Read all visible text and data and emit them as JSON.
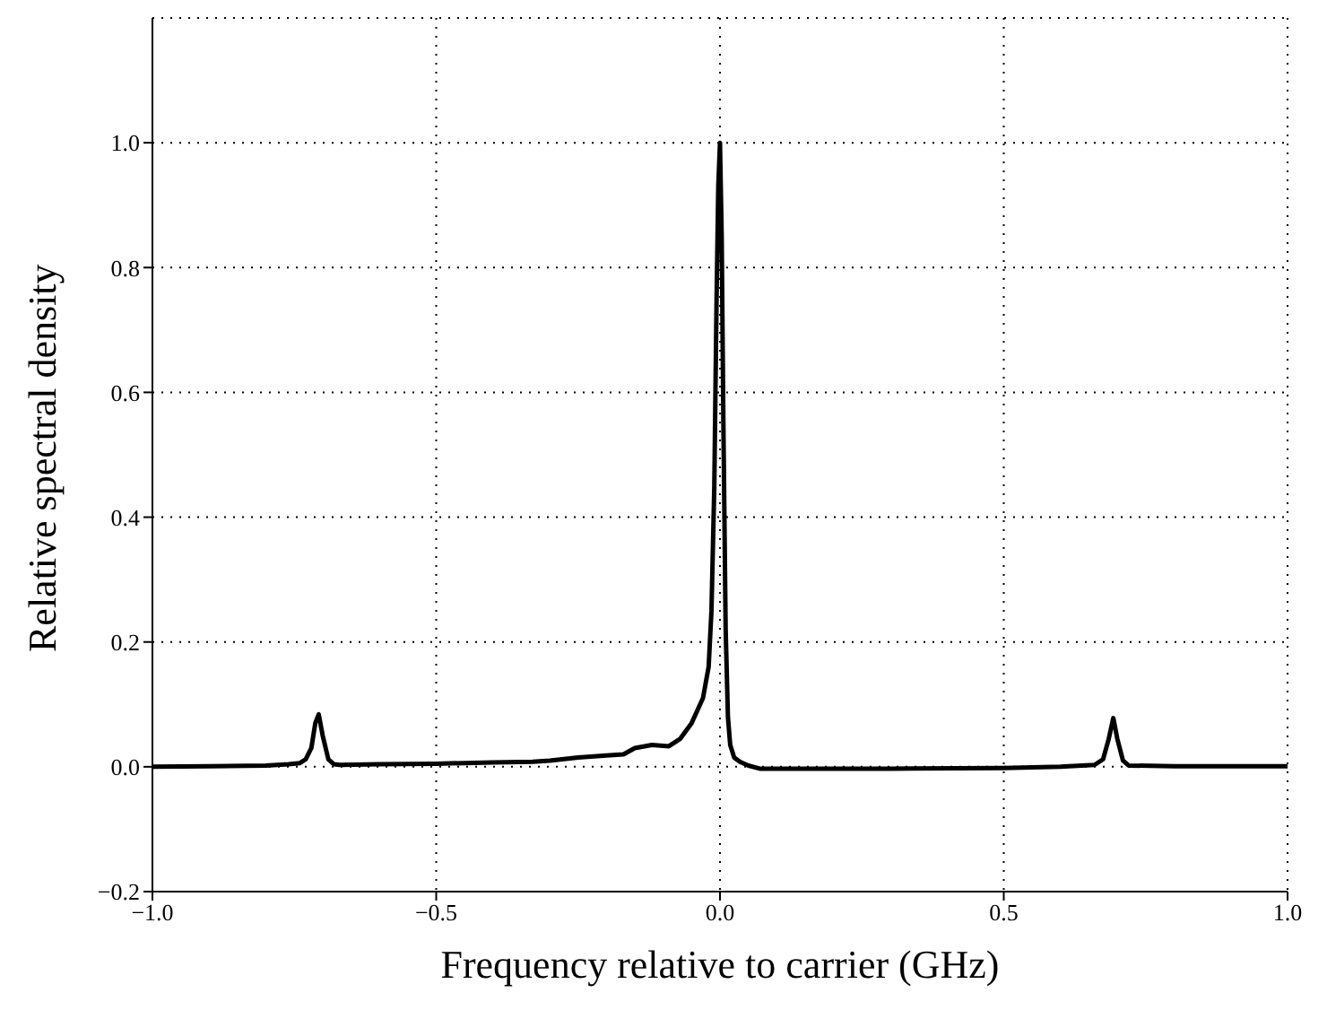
{
  "chart_data": {
    "type": "line",
    "xlabel": "Frequency relative to carrier (GHz)",
    "ylabel": "Relative spectral density",
    "xlim": [
      -1.0,
      1.0
    ],
    "ylim": [
      -0.2,
      1.2
    ],
    "xticks": [
      {
        "value": -1.0,
        "label": "−1.0"
      },
      {
        "value": -0.5,
        "label": "−0.5"
      },
      {
        "value": 0,
        "label": "0.0"
      },
      {
        "value": 0.5,
        "label": "0.5"
      },
      {
        "value": 1.0,
        "label": "1.0"
      }
    ],
    "yticks": [
      {
        "value": -0.2,
        "label": "−0.2"
      },
      {
        "value": 0,
        "label": "0.0"
      },
      {
        "value": 0.2,
        "label": "0.2"
      },
      {
        "value": 0.4,
        "label": "0.4"
      },
      {
        "value": 0.6,
        "label": "0.6"
      },
      {
        "value": 0.8,
        "label": "0.8"
      },
      {
        "value": 1.0,
        "label": "1.0"
      }
    ],
    "grid": true,
    "legend": false,
    "marker": "none",
    "line_style": "solid",
    "series": [
      {
        "color": "#000000",
        "x": [
          -1.0,
          -0.9,
          -0.8,
          -0.76,
          -0.74,
          -0.73,
          -0.72,
          -0.713,
          -0.707,
          -0.7,
          -0.69,
          -0.68,
          -0.67,
          -0.6,
          -0.5,
          -0.4,
          -0.33,
          -0.3,
          -0.25,
          -0.2,
          -0.17,
          -0.15,
          -0.12,
          -0.09,
          -0.07,
          -0.05,
          -0.04,
          -0.03,
          -0.02,
          -0.015,
          -0.01,
          -0.006,
          -0.003,
          0,
          0.003,
          0.006,
          0.01,
          0.014,
          0.018,
          0.025,
          0.035,
          0.05,
          0.07,
          0.1,
          0.3,
          0.5,
          0.6,
          0.66,
          0.675,
          0.685,
          0.693,
          0.7,
          0.71,
          0.72,
          0.8,
          0.9,
          1.0
        ],
        "values": [
          0,
          0.001,
          0.002,
          0.004,
          0.006,
          0.012,
          0.03,
          0.07,
          0.084,
          0.05,
          0.012,
          0.004,
          0.003,
          0.004,
          0.005,
          0.007,
          0.008,
          0.01,
          0.015,
          0.018,
          0.02,
          0.03,
          0.035,
          0.033,
          0.045,
          0.07,
          0.09,
          0.11,
          0.16,
          0.25,
          0.45,
          0.75,
          0.93,
          1.0,
          0.85,
          0.55,
          0.22,
          0.08,
          0.035,
          0.015,
          0.008,
          0.002,
          -0.003,
          -0.003,
          -0.003,
          -0.002,
          0.0,
          0.003,
          0.012,
          0.045,
          0.078,
          0.045,
          0.01,
          0.002,
          0.001,
          0.001,
          0.001
        ]
      }
    ]
  }
}
